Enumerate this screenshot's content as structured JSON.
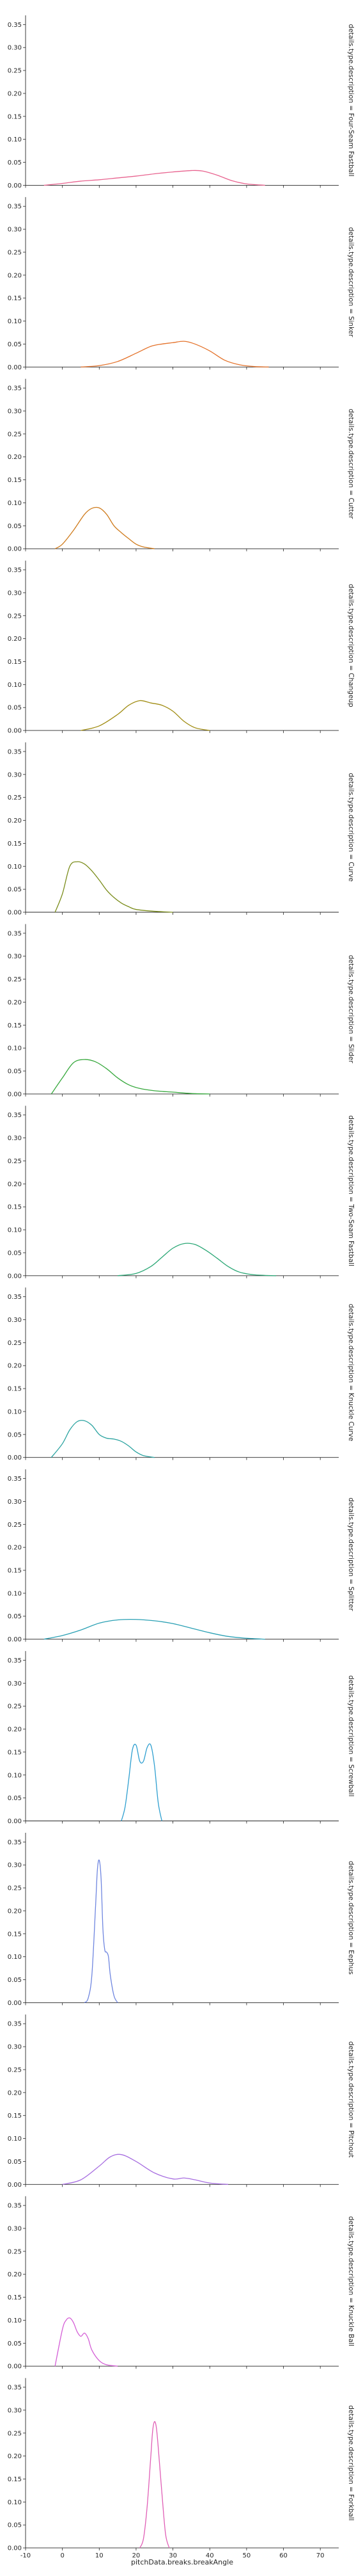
{
  "chart_data": {
    "type": "line",
    "xlabel": "pitchData.breaks.breakAngle",
    "ylabel": "",
    "xlim": [
      -10,
      75
    ],
    "ylim": [
      0,
      0.37
    ],
    "x_ticks": [
      -10,
      0,
      10,
      20,
      30,
      40,
      50,
      60,
      70
    ],
    "y_ticks": [
      0.0,
      0.05,
      0.1,
      0.15,
      0.2,
      0.25,
      0.3,
      0.35
    ],
    "grid": false,
    "legend": "none",
    "series": [
      {
        "name": "details.type.description = Four-Seam Fastball",
        "color": "#e8638f",
        "x": [
          -5,
          0,
          5,
          10,
          15,
          20,
          25,
          30,
          35,
          38,
          42,
          46,
          50,
          55
        ],
        "y": [
          0.0,
          0.004,
          0.009,
          0.012,
          0.016,
          0.02,
          0.025,
          0.029,
          0.032,
          0.031,
          0.022,
          0.01,
          0.003,
          0.0
        ]
      },
      {
        "name": "details.type.description = Sinker",
        "color": "#e4722a",
        "x": [
          5,
          10,
          15,
          20,
          24,
          27,
          30,
          33,
          36,
          40,
          44,
          48,
          52,
          56
        ],
        "y": [
          0.0,
          0.003,
          0.012,
          0.03,
          0.045,
          0.05,
          0.053,
          0.056,
          0.05,
          0.035,
          0.015,
          0.005,
          0.001,
          0.0
        ]
      },
      {
        "name": "details.type.description = Cutter",
        "color": "#cf7b1c",
        "x": [
          -2,
          0,
          3,
          6,
          8,
          10,
          12,
          14,
          16,
          18,
          20,
          22,
          25
        ],
        "y": [
          0.0,
          0.01,
          0.04,
          0.075,
          0.088,
          0.089,
          0.075,
          0.05,
          0.035,
          0.022,
          0.01,
          0.004,
          0.0
        ]
      },
      {
        "name": "details.type.description = Changeup",
        "color": "#a08c12",
        "x": [
          5,
          10,
          15,
          18,
          21,
          24,
          27,
          30,
          33,
          36,
          40
        ],
        "y": [
          0.0,
          0.01,
          0.035,
          0.055,
          0.065,
          0.06,
          0.055,
          0.042,
          0.02,
          0.006,
          0.0
        ]
      },
      {
        "name": "details.type.description = Curve",
        "color": "#7a8c1a",
        "x": [
          -2,
          0,
          2,
          4,
          6,
          8,
          10,
          12,
          14,
          16,
          18,
          20,
          25,
          30
        ],
        "y": [
          0.0,
          0.04,
          0.1,
          0.11,
          0.105,
          0.09,
          0.07,
          0.048,
          0.032,
          0.02,
          0.012,
          0.006,
          0.002,
          0.0
        ]
      },
      {
        "name": "details.type.description = Slider",
        "color": "#36a83c",
        "x": [
          -3,
          0,
          3,
          6,
          9,
          12,
          15,
          18,
          21,
          25,
          30,
          35,
          40
        ],
        "y": [
          0.0,
          0.035,
          0.068,
          0.075,
          0.07,
          0.055,
          0.035,
          0.02,
          0.012,
          0.007,
          0.004,
          0.001,
          0.0
        ]
      },
      {
        "name": "details.type.description = Two-Seam Fastball",
        "color": "#2aa775",
        "x": [
          15,
          20,
          24,
          27,
          30,
          33,
          36,
          39,
          42,
          45,
          48,
          52,
          58
        ],
        "y": [
          0.0,
          0.005,
          0.02,
          0.04,
          0.06,
          0.07,
          0.068,
          0.055,
          0.038,
          0.02,
          0.008,
          0.002,
          0.0
        ]
      },
      {
        "name": "details.type.description = Knuckle Curve",
        "color": "#2aa3a0",
        "x": [
          -3,
          0,
          2,
          4,
          6,
          8,
          10,
          12,
          14,
          16,
          18,
          20,
          22,
          25
        ],
        "y": [
          0.0,
          0.03,
          0.06,
          0.078,
          0.08,
          0.07,
          0.05,
          0.042,
          0.04,
          0.035,
          0.025,
          0.012,
          0.004,
          0.0
        ]
      },
      {
        "name": "details.type.description = Splitter",
        "color": "#2aa0b4",
        "x": [
          -5,
          0,
          5,
          10,
          15,
          20,
          25,
          30,
          35,
          40,
          45,
          50,
          55
        ],
        "y": [
          0.0,
          0.008,
          0.02,
          0.035,
          0.042,
          0.043,
          0.04,
          0.034,
          0.024,
          0.014,
          0.006,
          0.002,
          0.0
        ]
      },
      {
        "name": "details.type.description = Screwball",
        "color": "#2e9fd0",
        "x": [
          16,
          17,
          18,
          19,
          20,
          21,
          22,
          23,
          24,
          25,
          26,
          27
        ],
        "y": [
          0.0,
          0.03,
          0.09,
          0.155,
          0.165,
          0.13,
          0.13,
          0.16,
          0.165,
          0.12,
          0.04,
          0.0
        ]
      },
      {
        "name": "details.type.description = Eephus",
        "color": "#6f86e0",
        "x": [
          6,
          7,
          8,
          9,
          9.5,
          10,
          10.5,
          11,
          11.5,
          12,
          12.5,
          13,
          14,
          15
        ],
        "y": [
          0.0,
          0.01,
          0.06,
          0.21,
          0.29,
          0.31,
          0.27,
          0.16,
          0.115,
          0.11,
          0.1,
          0.06,
          0.015,
          0.0
        ]
      },
      {
        "name": "details.type.description = Pitchout",
        "color": "#a76ee0",
        "x": [
          0,
          5,
          10,
          13,
          16,
          20,
          25,
          30,
          33,
          36,
          40,
          45
        ],
        "y": [
          0.0,
          0.01,
          0.04,
          0.06,
          0.065,
          0.05,
          0.025,
          0.012,
          0.014,
          0.01,
          0.003,
          0.0
        ]
      },
      {
        "name": "details.type.description = Knuckle Ball",
        "color": "#d45fd6",
        "x": [
          -2,
          0,
          1,
          2,
          3,
          4,
          5,
          6,
          7,
          8,
          10,
          12,
          15
        ],
        "y": [
          0.0,
          0.08,
          0.1,
          0.105,
          0.095,
          0.075,
          0.065,
          0.072,
          0.06,
          0.035,
          0.012,
          0.003,
          0.0
        ]
      },
      {
        "name": "details.type.description = Forkball",
        "color": "#e05fb6",
        "x": [
          21,
          22,
          23,
          24,
          24.5,
          25,
          25.5,
          26,
          27,
          28,
          29
        ],
        "y": [
          0.0,
          0.02,
          0.09,
          0.2,
          0.255,
          0.275,
          0.262,
          0.22,
          0.12,
          0.03,
          0.0
        ]
      }
    ]
  }
}
